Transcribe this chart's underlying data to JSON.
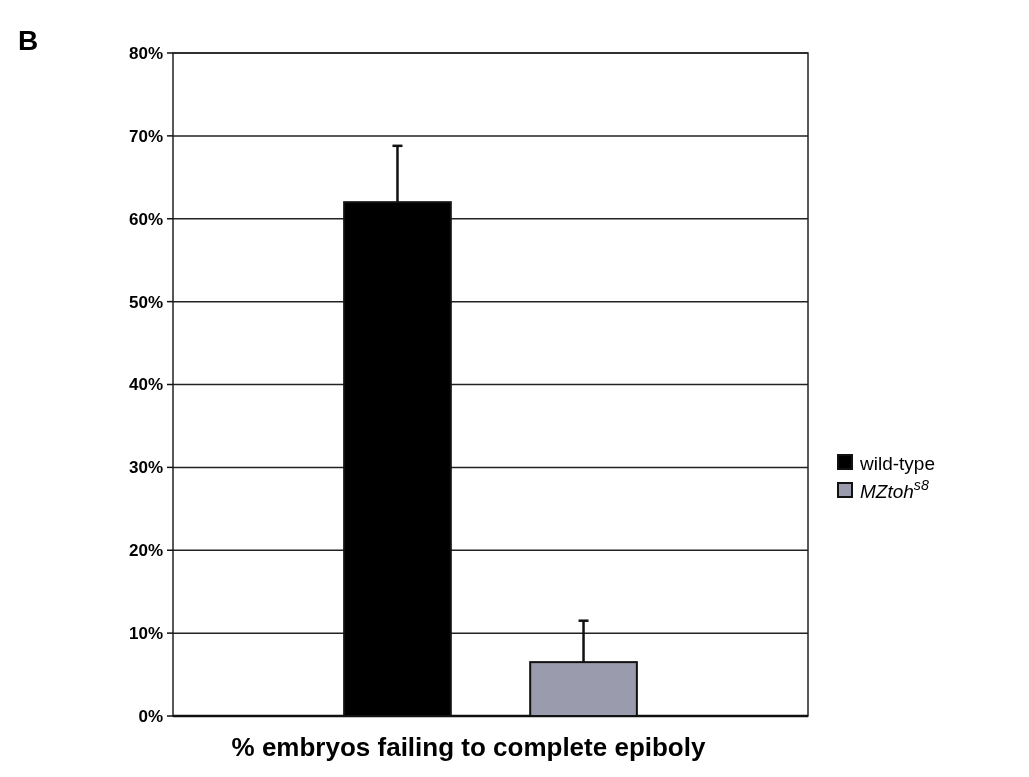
{
  "chart_data": {
    "type": "bar",
    "categories": [
      null
    ],
    "series": [
      {
        "name": "wild-type",
        "color": "#000000",
        "values": [
          62
        ],
        "errors": [
          [
            62,
            68.8
          ]
        ]
      },
      {
        "name": "MZtoh$^{s8}$",
        "color": "#9a9cae",
        "values": [
          6.5
        ],
        "errors": [
          [
            6.5,
            11.5
          ]
        ]
      }
    ],
    "xlabel": "% embryos failing to complete epiboly",
    "ylim": [
      0,
      80
    ],
    "yticks": [
      {
        "value": 0,
        "label": "0%"
      },
      {
        "value": 10,
        "label": "10%"
      },
      {
        "value": 20,
        "label": "20%"
      },
      {
        "value": 30,
        "label": "30%"
      },
      {
        "value": 40,
        "label": "40%"
      },
      {
        "value": 50,
        "label": "50%"
      },
      {
        "value": 60,
        "label": "60%"
      },
      {
        "value": 70,
        "label": "70%"
      },
      {
        "value": 80,
        "label": "80%"
      }
    ],
    "grid": "y",
    "legend": "right",
    "annotations": [
      "B"
    ]
  }
}
